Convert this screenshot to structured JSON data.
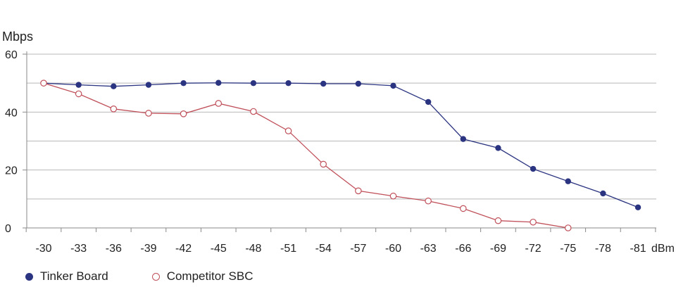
{
  "chart_data": {
    "type": "line",
    "y_axis_title": "Mbps",
    "x_unit_label": "dBm",
    "ylim": [
      0,
      60
    ],
    "y_ticks": [
      0,
      20,
      40,
      60
    ],
    "grid": true,
    "legend_position": "bottom-left",
    "categories": [
      "-30",
      "-33",
      "-36",
      "-39",
      "-42",
      "-45",
      "-48",
      "-51",
      "-54",
      "-57",
      "-60",
      "-63",
      "-66",
      "-69",
      "-72",
      "-75",
      "-78",
      "-81"
    ],
    "series": [
      {
        "name": "Tinker Board",
        "color": "#2b3480",
        "marker": "filled-circle",
        "values": [
          50,
          49.4,
          48.9,
          49.4,
          50,
          50.1,
          50,
          50,
          49.8,
          49.8,
          49.1,
          43.5,
          30.7,
          27.6,
          20.4,
          16.1,
          11.9,
          7.1
        ]
      },
      {
        "name": "Competitor SBC",
        "color": "#c0505a",
        "marker": "hollow-circle",
        "values": [
          50,
          46.3,
          41.1,
          39.6,
          39.4,
          43,
          40.2,
          33.5,
          22,
          12.8,
          11,
          9.3,
          6.7,
          2.5,
          2,
          0,
          null,
          null
        ]
      }
    ]
  }
}
